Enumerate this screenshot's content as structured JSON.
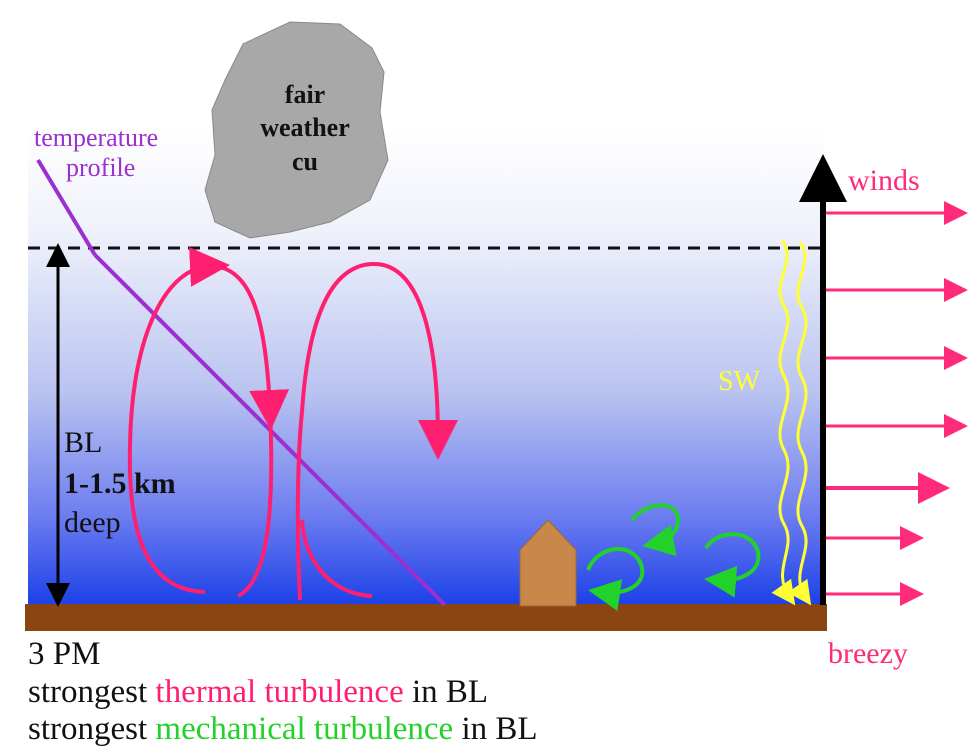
{
  "labels": {
    "temperature_profile_line1": "temperature",
    "temperature_profile_line2": "profile",
    "cloud_line1": "fair",
    "cloud_line2": "weather",
    "cloud_line3": "cu",
    "winds": "winds",
    "sw": "SW",
    "bl_line1": "BL",
    "bl_line2": "1-1.5 km",
    "bl_line3": "deep",
    "breezy": "breezy"
  },
  "caption": {
    "time": "3 PM",
    "line1_prefix": "strongest ",
    "line1_highlight": "thermal turbulence",
    "line1_suffix": " in BL",
    "line2_prefix": "strongest ",
    "line2_highlight": "mechanical turbulence",
    "line2_suffix": " in BL"
  },
  "colors": {
    "sky_top": "#ffffff",
    "sky_bottom": "#1a3fe8",
    "ground": "#8b4513",
    "temperature_profile": "#9b30d0",
    "thermal": "#ff1f70",
    "mechanical": "#22d22a",
    "shortwave": "#ffff33",
    "wind": "#ff2a7a",
    "cloud": "#a8a8a8",
    "house": "#c8884a",
    "text_dark": "#111111"
  }
}
